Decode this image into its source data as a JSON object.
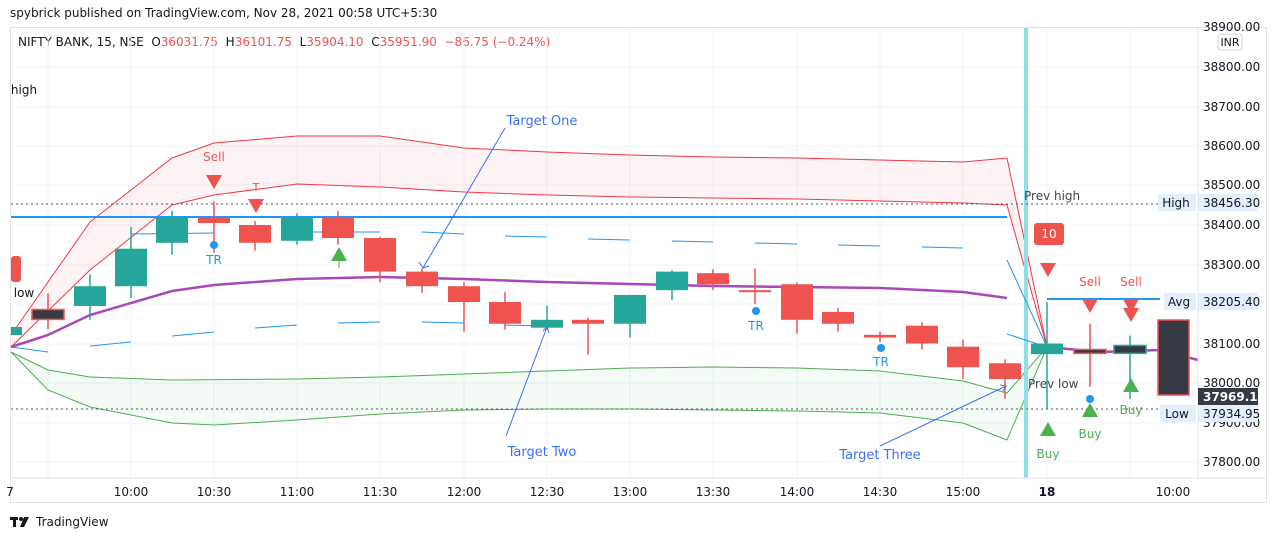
{
  "header": {
    "published": "spybrick published on TradingView.com, Nov 28, 2021 00:58 UTC+5:30"
  },
  "legend": {
    "symbol": "NIFTY BANK, 15, NSE",
    "o_label": "O",
    "o": "36031.75",
    "h_label": "H",
    "h": "36101.75",
    "l_label": "L",
    "l": "35904.10",
    "c_label": "C",
    "c": "35951.90",
    "change": "−86.75 (−0.24%)"
  },
  "price_axis": {
    "currency": "INR",
    "ticks": [
      "38900.00",
      "38800.00",
      "38700.00",
      "38600.00",
      "38500.00",
      "38400.00",
      "38300.00",
      "38100.00",
      "38000.00",
      "37900.00",
      "37800.00"
    ],
    "badges": {
      "high_label": "High",
      "high_value": "38456.30",
      "avg_label": "Avg",
      "avg_value": "38205.40",
      "last_value": "37969.10",
      "low_label": "Low",
      "low_value": "37934.95"
    }
  },
  "time_axis": {
    "ticks": [
      "7",
      "10:00",
      "10:30",
      "11:00",
      "11:30",
      "12:00",
      "12:30",
      "13:00",
      "13:30",
      "14:00",
      "14:30",
      "15:00",
      "18",
      "10:00"
    ]
  },
  "annotations": {
    "target_one": "Target One",
    "target_two": "Target Two",
    "target_three": "Target Three",
    "prev_high": "Prev high",
    "prev_low": "Prev  low",
    "left_high": "high",
    "left_low": "low",
    "sell": "Sell",
    "buy": "Buy",
    "tr": "TR",
    "t": "T",
    "badge_10": "10"
  },
  "colors": {
    "up": "#26a69a",
    "down": "#ef5350",
    "dark": "#363a45",
    "band_red": "#f23645",
    "band_green": "#4caf50",
    "avg_purple": "#ab47bc",
    "blue": "#2196f3",
    "session": "#8fdfe6",
    "annot": "#3d6ef5"
  },
  "chart_data": {
    "type": "candlestick",
    "title": "NIFTY BANK, 15, NSE",
    "ylabel": "INR",
    "ylim": [
      37760,
      38920
    ],
    "x": [
      "09:45",
      "10:00",
      "10:15",
      "10:30",
      "10:45",
      "11:00",
      "11:15",
      "11:30",
      "11:45",
      "12:00",
      "12:15",
      "12:30",
      "12:45",
      "13:00",
      "13:15",
      "13:30",
      "13:45",
      "14:00",
      "14:15",
      "14:30",
      "14:45",
      "15:00",
      "15:15",
      "18 09:15",
      "18 09:30",
      "18 09:45",
      "18 10:00"
    ],
    "series": [
      {
        "name": "NIFTY BANK 15m",
        "ohlc": [
          [
            38186,
            38227,
            38136,
            38161
          ],
          [
            38195,
            38275,
            38160,
            38245
          ],
          [
            38245,
            38395,
            38215,
            38340
          ],
          [
            38355,
            38436,
            38325,
            38420
          ],
          [
            38420,
            38460,
            38330,
            38405
          ],
          [
            38400,
            38410,
            38335,
            38355
          ],
          [
            38360,
            38430,
            38350,
            38420
          ],
          [
            38420,
            38436,
            38350,
            38367
          ],
          [
            38367,
            38370,
            38255,
            38282
          ],
          [
            38282,
            38290,
            38228,
            38245
          ],
          [
            38245,
            38255,
            38130,
            38205
          ],
          [
            38205,
            38230,
            38135,
            38150
          ],
          [
            38140,
            38196,
            38135,
            38160
          ],
          [
            38160,
            38165,
            38072,
            38150
          ],
          [
            38150,
            38223,
            38115,
            38223
          ],
          [
            38235,
            38285,
            38210,
            38282
          ],
          [
            38278,
            38288,
            38235,
            38250
          ],
          [
            38235,
            38290,
            38200,
            38230
          ],
          [
            38250,
            38255,
            38125,
            38160
          ],
          [
            38180,
            38190,
            38130,
            38150
          ],
          [
            38122,
            38130,
            38104,
            38115
          ],
          [
            38145,
            38154,
            38085,
            38100
          ],
          [
            38092,
            38110,
            38010,
            38040
          ],
          [
            38050,
            38060,
            37960,
            38010
          ],
          [
            38073,
            38205,
            37935,
            38100
          ],
          [
            38085,
            38150,
            37990,
            38075
          ],
          [
            38095,
            38120,
            37960,
            38075
          ]
        ]
      }
    ],
    "levels": {
      "prev_high": 38456.3,
      "avg": 38205.4,
      "prev_low": 37934.95,
      "last": 37969.1
    }
  }
}
